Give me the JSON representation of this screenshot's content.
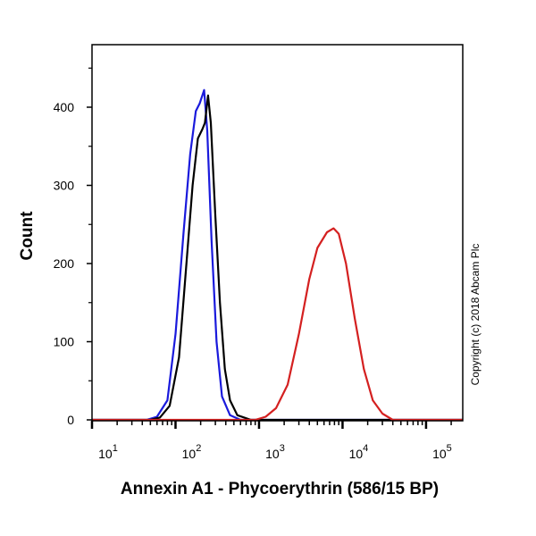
{
  "chart_data": {
    "type": "line",
    "xlabel": "Annexin A1 - Phycoerythrin (586/15 BP)",
    "ylabel": "Count",
    "x_scale": "log",
    "xlim": [
      10,
      275000
    ],
    "ylim": [
      0,
      480
    ],
    "x_ticks": [
      {
        "base": "10",
        "exp": "1",
        "value": 10
      },
      {
        "base": "10",
        "exp": "2",
        "value": 100
      },
      {
        "base": "10",
        "exp": "3",
        "value": 1000
      },
      {
        "base": "10",
        "exp": "4",
        "value": 10000
      },
      {
        "base": "10",
        "exp": "5",
        "value": 100000
      }
    ],
    "y_ticks": [
      "0",
      "100",
      "200",
      "300",
      "400"
    ],
    "grid": false,
    "annotation": "Copyright (c) 2018 Abcam Plc",
    "series": [
      {
        "color": "#1a1adc",
        "points": [
          [
            45,
            0
          ],
          [
            60,
            4
          ],
          [
            80,
            25
          ],
          [
            100,
            110
          ],
          [
            125,
            240
          ],
          [
            150,
            340
          ],
          [
            175,
            395
          ],
          [
            195,
            405
          ],
          [
            220,
            422
          ],
          [
            240,
            370
          ],
          [
            270,
            230
          ],
          [
            310,
            100
          ],
          [
            360,
            30
          ],
          [
            450,
            6
          ],
          [
            600,
            0
          ]
        ]
      },
      {
        "color": "#000000",
        "points": [
          [
            50,
            0
          ],
          [
            65,
            3
          ],
          [
            85,
            18
          ],
          [
            110,
            80
          ],
          [
            135,
            200
          ],
          [
            160,
            300
          ],
          [
            185,
            360
          ],
          [
            210,
            372
          ],
          [
            225,
            380
          ],
          [
            245,
            415
          ],
          [
            265,
            380
          ],
          [
            300,
            260
          ],
          [
            340,
            150
          ],
          [
            390,
            65
          ],
          [
            450,
            25
          ],
          [
            550,
            6
          ],
          [
            800,
            0
          ]
        ]
      },
      {
        "color": "#d42020",
        "points": [
          [
            900,
            0
          ],
          [
            1200,
            4
          ],
          [
            1600,
            15
          ],
          [
            2200,
            45
          ],
          [
            3000,
            110
          ],
          [
            4000,
            180
          ],
          [
            5000,
            220
          ],
          [
            6500,
            240
          ],
          [
            7800,
            245
          ],
          [
            9000,
            238
          ],
          [
            11000,
            200
          ],
          [
            14000,
            130
          ],
          [
            18000,
            65
          ],
          [
            23000,
            25
          ],
          [
            30000,
            8
          ],
          [
            40000,
            0
          ]
        ]
      }
    ]
  }
}
